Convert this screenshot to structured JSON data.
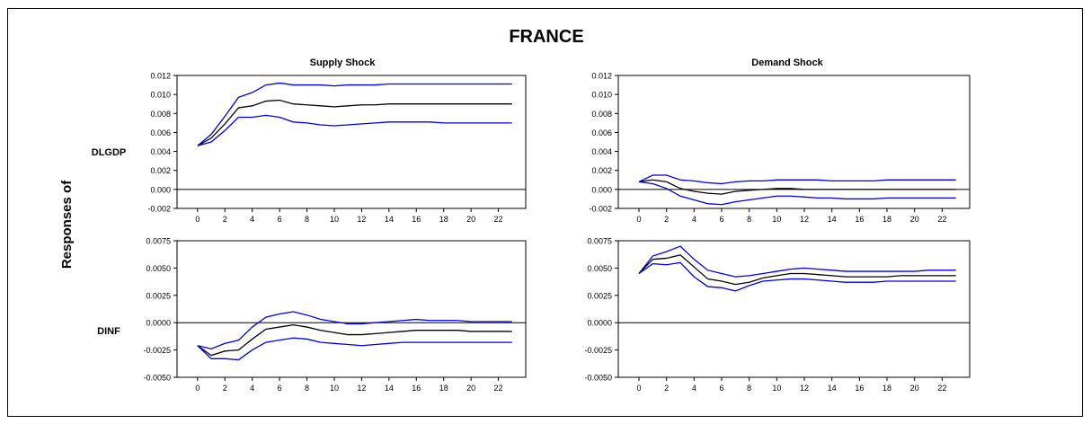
{
  "figure": {
    "title": "FRANCE",
    "y_side_label": "Responses of",
    "col_titles": [
      "Supply Shock",
      "Demand Shock"
    ],
    "row_labels": [
      "DLGDP",
      "DINF"
    ]
  },
  "colors": {
    "band": "#0000dd",
    "response": "#000000",
    "zero_line": "#000000",
    "frame": "#000000"
  },
  "chart_data": [
    {
      "type": "line",
      "panel": "DLGDP / Supply Shock",
      "row": 0,
      "col": 0,
      "xlim": [
        -1.5,
        24
      ],
      "x_ticks": [
        0,
        2,
        4,
        6,
        8,
        10,
        12,
        14,
        16,
        18,
        20,
        22
      ],
      "ylim": [
        -0.002,
        0.012
      ],
      "y_ticks": [
        -0.002,
        0.0,
        0.002,
        0.004,
        0.006,
        0.008,
        0.01,
        0.012
      ],
      "y_tick_labels": [
        "-0.002",
        "0.000",
        "0.002",
        "0.004",
        "0.006",
        "0.008",
        "0.010",
        "0.012"
      ],
      "x": [
        0,
        1,
        2,
        3,
        4,
        5,
        6,
        7,
        8,
        9,
        10,
        11,
        12,
        13,
        14,
        15,
        16,
        17,
        18,
        19,
        20,
        21,
        22,
        23
      ],
      "series": [
        {
          "role": "upper",
          "values": [
            0.0046,
            0.0058,
            0.0077,
            0.0097,
            0.0102,
            0.011,
            0.0112,
            0.011,
            0.011,
            0.011,
            0.0109,
            0.011,
            0.011,
            0.011,
            0.0111,
            0.0111,
            0.0111,
            0.0111,
            0.0111,
            0.0111,
            0.0111,
            0.0111,
            0.0111,
            0.0111
          ]
        },
        {
          "role": "response",
          "values": [
            0.0046,
            0.0054,
            0.0069,
            0.0086,
            0.0088,
            0.0093,
            0.0094,
            0.009,
            0.0089,
            0.0088,
            0.0087,
            0.0088,
            0.0089,
            0.0089,
            0.009,
            0.009,
            0.009,
            0.009,
            0.009,
            0.009,
            0.009,
            0.009,
            0.009,
            0.009
          ]
        },
        {
          "role": "lower",
          "values": [
            0.0046,
            0.005,
            0.0062,
            0.0076,
            0.0076,
            0.0078,
            0.0076,
            0.0071,
            0.007,
            0.0068,
            0.0067,
            0.0068,
            0.0069,
            0.007,
            0.0071,
            0.0071,
            0.0071,
            0.0071,
            0.007,
            0.007,
            0.007,
            0.007,
            0.007,
            0.007
          ]
        }
      ]
    },
    {
      "type": "line",
      "panel": "DLGDP / Demand Shock",
      "row": 0,
      "col": 1,
      "xlim": [
        -1.5,
        24
      ],
      "x_ticks": [
        0,
        2,
        4,
        6,
        8,
        10,
        12,
        14,
        16,
        18,
        20,
        22
      ],
      "ylim": [
        -0.002,
        0.012
      ],
      "y_ticks": [
        -0.002,
        0.0,
        0.002,
        0.004,
        0.006,
        0.008,
        0.01,
        0.012
      ],
      "y_tick_labels": [
        "-0.002",
        "0.000",
        "0.002",
        "0.004",
        "0.006",
        "0.008",
        "0.010",
        "0.012"
      ],
      "x": [
        0,
        1,
        2,
        3,
        4,
        5,
        6,
        7,
        8,
        9,
        10,
        11,
        12,
        13,
        14,
        15,
        16,
        17,
        18,
        19,
        20,
        21,
        22,
        23
      ],
      "series": [
        {
          "role": "upper",
          "values": [
            0.0008,
            0.0015,
            0.0015,
            0.001,
            0.0009,
            0.0007,
            0.0006,
            0.0008,
            0.0009,
            0.0009,
            0.001,
            0.001,
            0.001,
            0.001,
            0.0009,
            0.0009,
            0.0009,
            0.0009,
            0.001,
            0.001,
            0.001,
            0.001,
            0.001,
            0.001
          ]
        },
        {
          "role": "response",
          "values": [
            0.0008,
            0.001,
            0.0008,
            0.0001,
            -0.0002,
            -0.0004,
            -0.0005,
            -0.0002,
            -0.0001,
            0.0,
            0.0001,
            0.0001,
            0.0,
            0.0,
            0.0,
            0.0,
            0.0,
            0.0,
            0.0,
            0.0,
            0.0,
            0.0,
            0.0,
            0.0
          ]
        },
        {
          "role": "lower",
          "values": [
            0.0008,
            0.0006,
            0.0001,
            -0.0007,
            -0.0011,
            -0.0015,
            -0.0016,
            -0.0013,
            -0.0011,
            -0.0009,
            -0.0007,
            -0.0007,
            -0.0008,
            -0.0009,
            -0.0009,
            -0.001,
            -0.001,
            -0.001,
            -0.0009,
            -0.0009,
            -0.0009,
            -0.0009,
            -0.0009,
            -0.0009
          ]
        }
      ]
    },
    {
      "type": "line",
      "panel": "DINF / Supply Shock",
      "row": 1,
      "col": 0,
      "xlim": [
        -1.5,
        24
      ],
      "x_ticks": [
        0,
        2,
        4,
        6,
        8,
        10,
        12,
        14,
        16,
        18,
        20,
        22
      ],
      "ylim": [
        -0.005,
        0.0075
      ],
      "y_ticks": [
        -0.005,
        -0.0025,
        0.0,
        0.0025,
        0.005,
        0.0075
      ],
      "y_tick_labels": [
        "-0.0050",
        "-0.0025",
        "0.0000",
        "0.0025",
        "0.0050",
        "0.0075"
      ],
      "x": [
        0,
        1,
        2,
        3,
        4,
        5,
        6,
        7,
        8,
        9,
        10,
        11,
        12,
        13,
        14,
        15,
        16,
        17,
        18,
        19,
        20,
        21,
        22,
        23
      ],
      "series": [
        {
          "role": "upper",
          "values": [
            -0.0021,
            -0.0024,
            -0.0019,
            -0.0016,
            -0.0004,
            0.0005,
            0.0008,
            0.001,
            0.0007,
            0.0003,
            0.0001,
            -0.0001,
            -0.0001,
            0.0,
            0.0001,
            0.0002,
            0.0003,
            0.0002,
            0.0002,
            0.0002,
            0.0001,
            0.0001,
            0.0001,
            0.0001
          ]
        },
        {
          "role": "response",
          "values": [
            -0.0021,
            -0.003,
            -0.0026,
            -0.0025,
            -0.0015,
            -0.0006,
            -0.0004,
            -0.0002,
            -0.0004,
            -0.0007,
            -0.0009,
            -0.0011,
            -0.0011,
            -0.001,
            -0.0009,
            -0.0008,
            -0.0007,
            -0.0007,
            -0.0007,
            -0.0007,
            -0.0008,
            -0.0008,
            -0.0008,
            -0.0008
          ]
        },
        {
          "role": "lower",
          "values": [
            -0.0021,
            -0.0033,
            -0.0033,
            -0.0034,
            -0.0025,
            -0.0018,
            -0.0016,
            -0.0014,
            -0.0015,
            -0.0018,
            -0.0019,
            -0.002,
            -0.0021,
            -0.002,
            -0.0019,
            -0.0018,
            -0.0018,
            -0.0018,
            -0.0018,
            -0.0018,
            -0.0018,
            -0.0018,
            -0.0018,
            -0.0018
          ]
        }
      ]
    },
    {
      "type": "line",
      "panel": "DINF / Demand Shock",
      "row": 1,
      "col": 1,
      "xlim": [
        -1.5,
        24
      ],
      "x_ticks": [
        0,
        2,
        4,
        6,
        8,
        10,
        12,
        14,
        16,
        18,
        20,
        22
      ],
      "ylim": [
        -0.005,
        0.0075
      ],
      "y_ticks": [
        -0.005,
        -0.0025,
        0.0,
        0.0025,
        0.005,
        0.0075
      ],
      "y_tick_labels": [
        "-0.0050",
        "-0.0025",
        "0.0000",
        "0.0025",
        "0.0050",
        "0.0075"
      ],
      "x": [
        0,
        1,
        2,
        3,
        4,
        5,
        6,
        7,
        8,
        9,
        10,
        11,
        12,
        13,
        14,
        15,
        16,
        17,
        18,
        19,
        20,
        21,
        22,
        23
      ],
      "series": [
        {
          "role": "upper",
          "values": [
            0.0045,
            0.0061,
            0.0065,
            0.007,
            0.0058,
            0.0048,
            0.0045,
            0.0042,
            0.0043,
            0.0045,
            0.0047,
            0.0049,
            0.005,
            0.0049,
            0.0048,
            0.0047,
            0.0047,
            0.0047,
            0.0047,
            0.0047,
            0.0047,
            0.0048,
            0.0048,
            0.0048
          ]
        },
        {
          "role": "response",
          "values": [
            0.0045,
            0.0058,
            0.0059,
            0.0062,
            0.0051,
            0.004,
            0.0038,
            0.0035,
            0.0037,
            0.0041,
            0.0043,
            0.0045,
            0.0045,
            0.0044,
            0.0043,
            0.0042,
            0.0042,
            0.0042,
            0.0042,
            0.0043,
            0.0043,
            0.0043,
            0.0043,
            0.0043
          ]
        },
        {
          "role": "lower",
          "values": [
            0.0045,
            0.0054,
            0.0053,
            0.0055,
            0.0042,
            0.0033,
            0.0032,
            0.0029,
            0.0034,
            0.0038,
            0.0039,
            0.004,
            0.004,
            0.0039,
            0.0038,
            0.0037,
            0.0037,
            0.0037,
            0.0038,
            0.0038,
            0.0038,
            0.0038,
            0.0038,
            0.0038
          ]
        }
      ]
    }
  ]
}
